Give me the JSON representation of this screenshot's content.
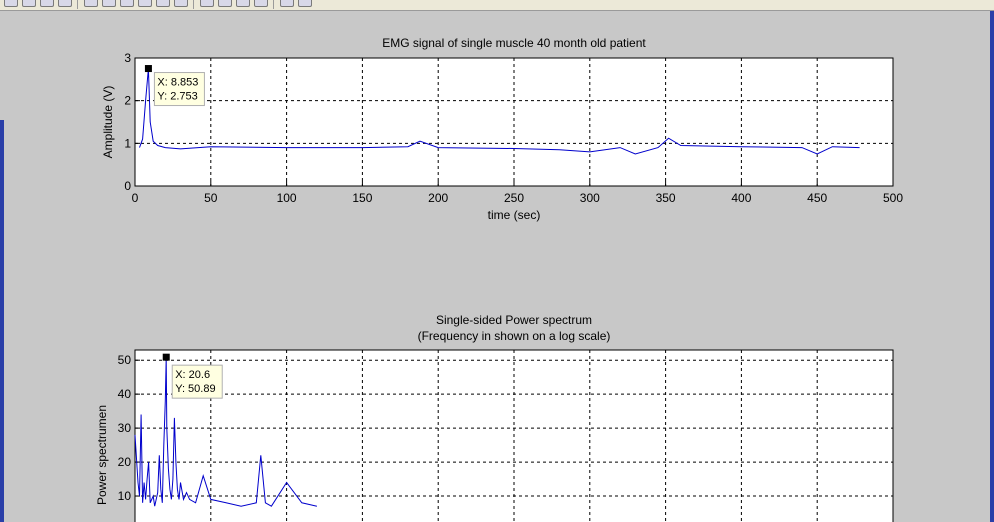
{
  "toolbar": {
    "buttons": [
      "new-figure",
      "open-file",
      "save-figure",
      "print-figure",
      "edit-plot",
      "zoom-in",
      "zoom-out",
      "pan",
      "rotate-3d",
      "data-cursor",
      "brush",
      "link-plot",
      "colorbar",
      "legend",
      "hide-plot-tools",
      "show-plot-tools"
    ]
  },
  "chart_data": [
    {
      "type": "line",
      "title": "EMG signal of single muscle 40 month old patient",
      "xlabel": "time (sec)",
      "ylabel": "Amplitude (V)",
      "xlim": [
        0,
        500
      ],
      "ylim": [
        0,
        3
      ],
      "xticks": [
        0,
        50,
        100,
        150,
        200,
        250,
        300,
        350,
        400,
        450,
        500
      ],
      "yticks": [
        0,
        1,
        2,
        3
      ],
      "grid": true,
      "line_color": "#0000cc",
      "series": [
        {
          "x": [
            3,
            5,
            7,
            8.853,
            10,
            12,
            15,
            20,
            30,
            50,
            100,
            150,
            180,
            188,
            200,
            250,
            280,
            300,
            320,
            330,
            345,
            352,
            360,
            400,
            440,
            450,
            460,
            478
          ],
          "y": [
            0.9,
            1.1,
            2.0,
            2.753,
            1.5,
            1.05,
            0.95,
            0.9,
            0.87,
            0.92,
            0.9,
            0.9,
            0.92,
            1.05,
            0.9,
            0.88,
            0.85,
            0.8,
            0.9,
            0.75,
            0.9,
            1.12,
            0.95,
            0.92,
            0.9,
            0.75,
            0.92,
            0.9
          ]
        }
      ],
      "datatip": {
        "x_label": "X: 8.853",
        "y_label": "Y: 2.753",
        "x": 8.853,
        "y": 2.753
      }
    },
    {
      "type": "line",
      "title": "Single-sided Power spectrum",
      "subtitle": "(Frequency in shown on a log scale)",
      "xlabel": "",
      "ylabel": "Power spectrumen",
      "xlim": [
        0,
        500
      ],
      "ylim": [
        0,
        53
      ],
      "yticks": [
        10,
        20,
        30,
        40,
        50
      ],
      "grid": true,
      "line_color": "#0000cc",
      "series": [
        {
          "x": [
            0,
            2,
            3,
            4,
            5,
            6,
            7,
            8,
            9,
            10,
            12,
            13,
            14,
            15,
            16,
            17,
            18,
            19,
            20,
            20.6,
            21,
            22,
            23,
            24,
            25,
            26,
            27,
            28,
            29,
            30,
            32,
            34,
            36,
            40,
            45,
            50,
            60,
            70,
            80,
            83,
            86,
            90,
            100,
            110,
            120
          ],
          "y": [
            28,
            14,
            10,
            34,
            8,
            14,
            9,
            15,
            20,
            8,
            10,
            7,
            9,
            11,
            22,
            12,
            8,
            25,
            38,
            50.89,
            30,
            18,
            12,
            9,
            15,
            33,
            20,
            12,
            9,
            14,
            9,
            11,
            9,
            8,
            16,
            9,
            8,
            7,
            8,
            22,
            8,
            7,
            14,
            8,
            7
          ]
        }
      ],
      "datatip": {
        "x_label": "X: 20.6",
        "y_label": "Y: 50.89",
        "x": 20.6,
        "y": 50.89
      }
    }
  ]
}
